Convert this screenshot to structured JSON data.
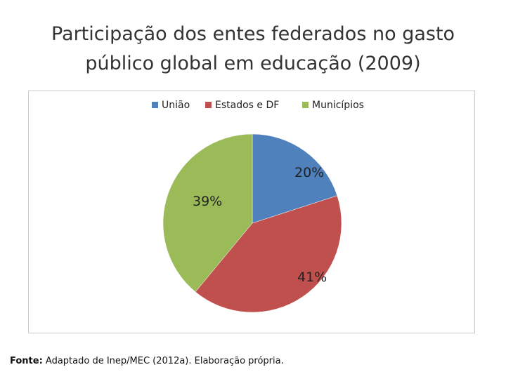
{
  "slide": {
    "title": "Participação dos entes federados no gasto público global em educação (2009)"
  },
  "chart_data": {
    "type": "pie",
    "title": "",
    "categories": [
      "União",
      "Estados e DF",
      "Municípios"
    ],
    "values": [
      20,
      41,
      39
    ],
    "data_labels": [
      "20%",
      "41%",
      "39%"
    ],
    "colors": [
      "#4F81BD",
      "#C0504D",
      "#9BBB59"
    ],
    "legend_position": "top"
  },
  "source": {
    "label": "Fonte:",
    "text": "Adaptado de Inep/MEC (2012a). Elaboração própria."
  }
}
